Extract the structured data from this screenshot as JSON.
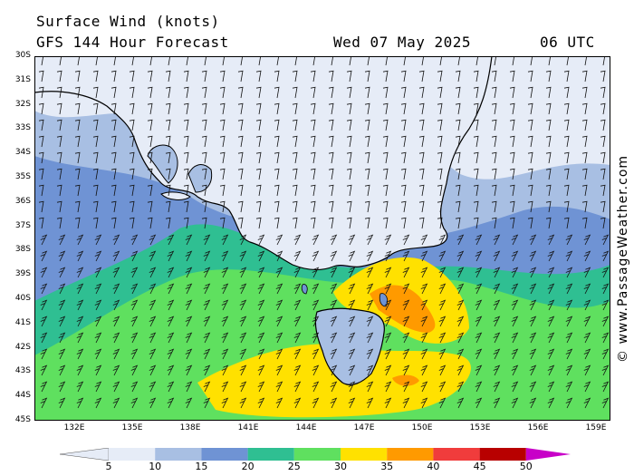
{
  "header": {
    "title": "Surface Wind (knots)",
    "subtitle": "GFS 144 Hour Forecast",
    "date": "Wed 07 May 2025",
    "time": "06 UTC"
  },
  "credit": "© www.PassageWeather.com",
  "axes": {
    "lat_labels": [
      "30S",
      "31S",
      "32S",
      "33S",
      "34S",
      "35S",
      "36S",
      "37S",
      "38S",
      "39S",
      "40S",
      "41S",
      "42S",
      "43S",
      "44S",
      "45S"
    ],
    "lon_labels": [
      "132E",
      "135E",
      "138E",
      "141E",
      "144E",
      "147E",
      "150E",
      "153E",
      "156E",
      "159E"
    ]
  },
  "legend": {
    "ticks": [
      "5",
      "10",
      "15",
      "20",
      "25",
      "30",
      "35",
      "40",
      "45",
      "50"
    ],
    "colors": [
      "#e6ecf7",
      "#a8bfe3",
      "#6f93d4",
      "#2fbf92",
      "#5fe05f",
      "#ffe100",
      "#ff9a00",
      "#f03c3c",
      "#b80000",
      "#c800c8"
    ]
  },
  "map_colors": {
    "ocean_calm": "#e6ecf7",
    "land_outline": "#000000"
  }
}
